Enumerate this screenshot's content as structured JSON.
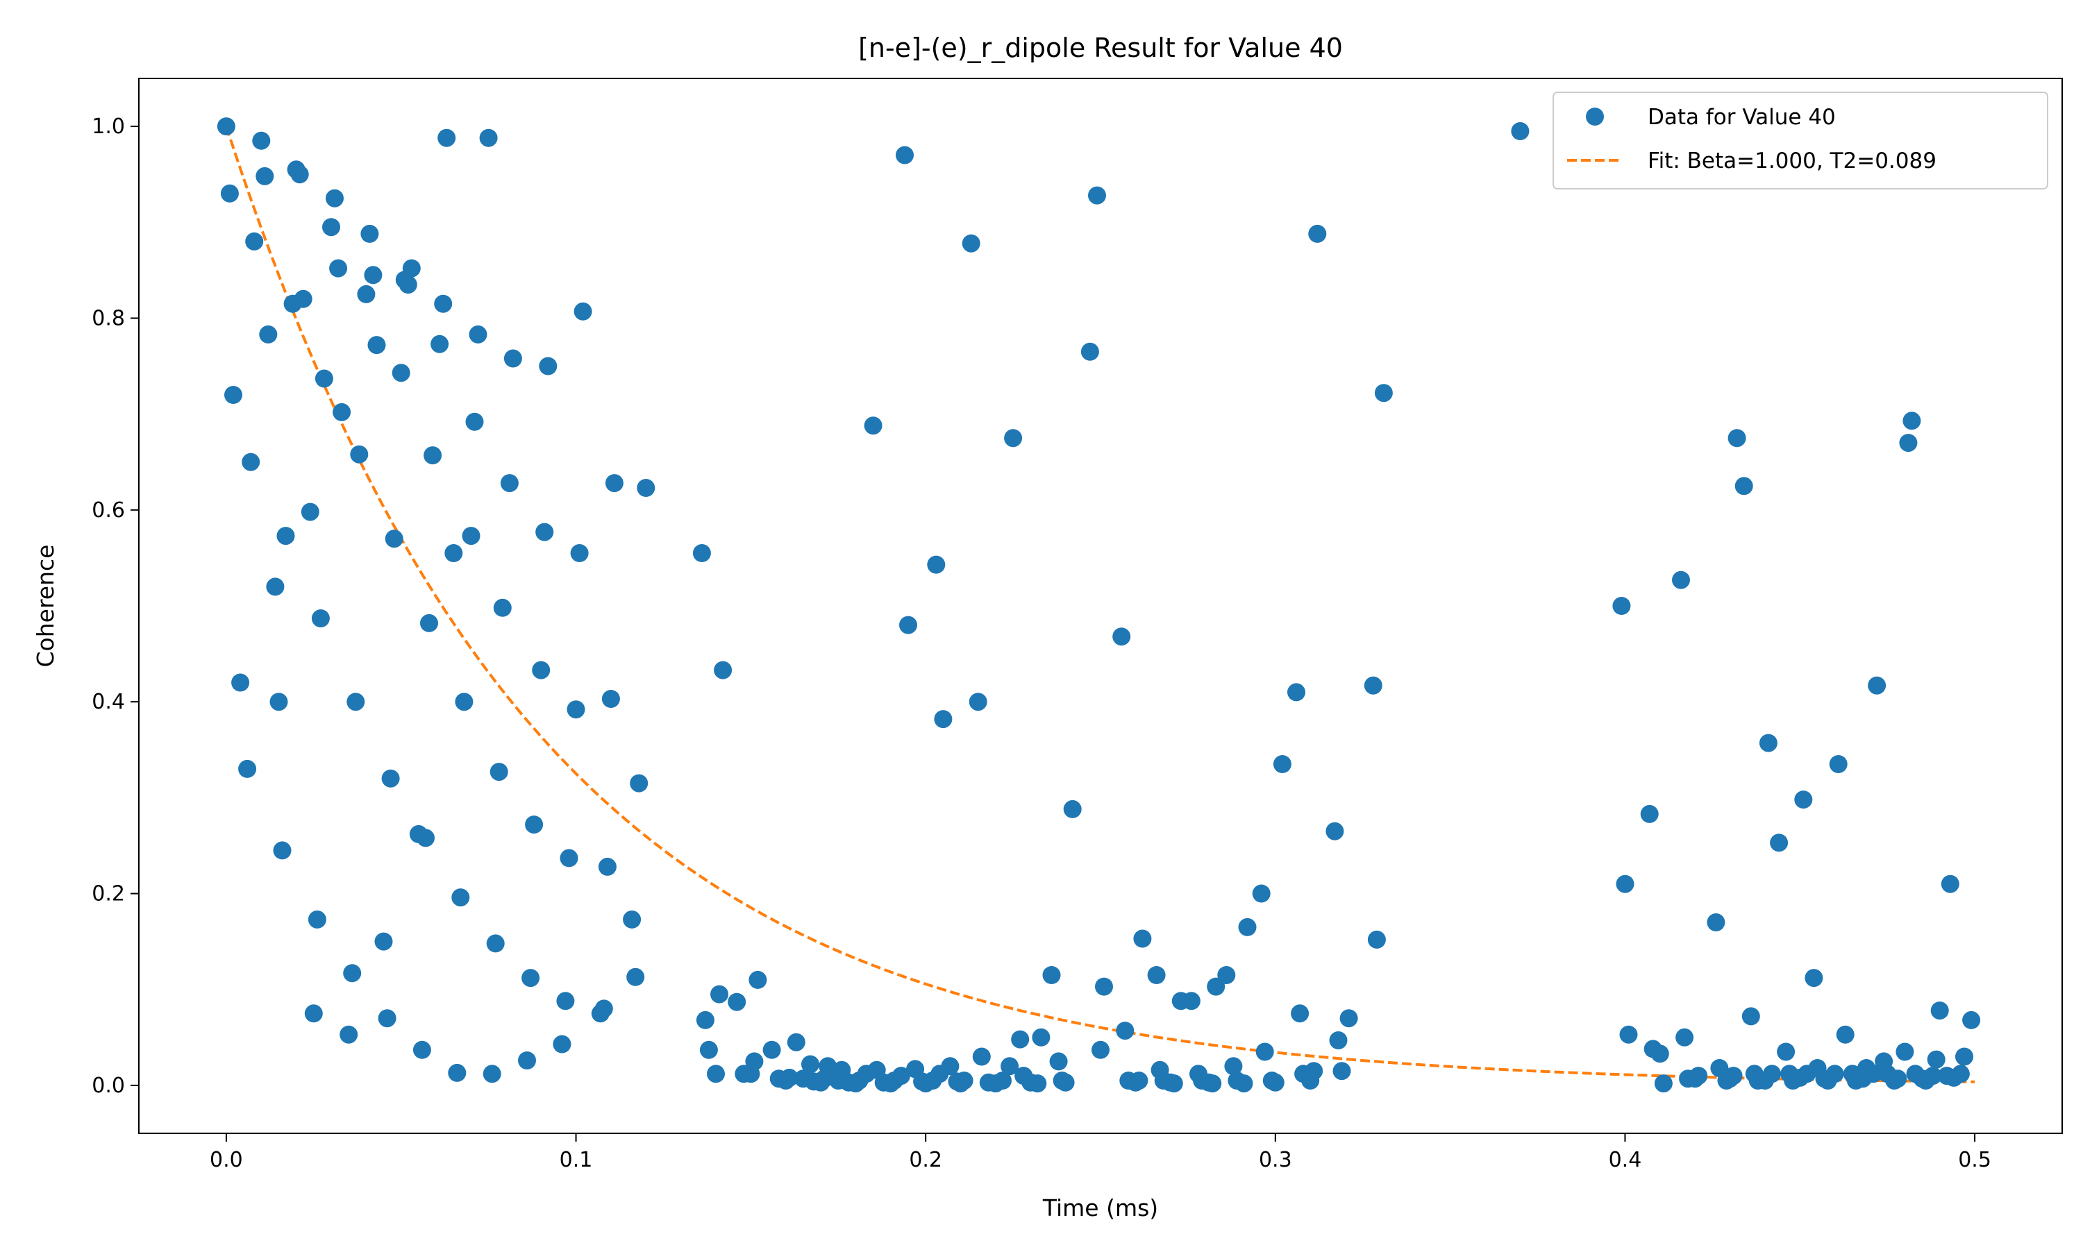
{
  "chart_data": {
    "type": "scatter",
    "title": "[n-e]-(e)_r_dipole Result for Value 40",
    "xlabel": "Time (ms)",
    "ylabel": "Coherence",
    "xlim": [
      -0.025,
      0.525
    ],
    "ylim": [
      -0.05,
      1.05
    ],
    "xticks": [
      {
        "value": 0.0,
        "label": "0.0"
      },
      {
        "value": 0.1,
        "label": "0.1"
      },
      {
        "value": 0.2,
        "label": "0.2"
      },
      {
        "value": 0.3,
        "label": "0.3"
      },
      {
        "value": 0.4,
        "label": "0.4"
      },
      {
        "value": 0.5,
        "label": "0.5"
      }
    ],
    "yticks": [
      {
        "value": 0.0,
        "label": "0.0"
      },
      {
        "value": 0.2,
        "label": "0.2"
      },
      {
        "value": 0.4,
        "label": "0.4"
      },
      {
        "value": 0.6,
        "label": "0.6"
      },
      {
        "value": 0.8,
        "label": "0.8"
      },
      {
        "value": 1.0,
        "label": "1.0"
      }
    ],
    "grid": false,
    "legend_position": "top-right",
    "series": [
      {
        "name": "Data for Value 40",
        "kind": "scatter",
        "color": "#1f77b4",
        "points": [
          [
            0.0,
            1.0
          ],
          [
            0.001,
            0.93
          ],
          [
            0.002,
            0.72
          ],
          [
            0.004,
            0.42
          ],
          [
            0.006,
            0.33
          ],
          [
            0.007,
            0.65
          ],
          [
            0.008,
            0.88
          ],
          [
            0.01,
            0.985
          ],
          [
            0.011,
            0.948
          ],
          [
            0.012,
            0.783
          ],
          [
            0.014,
            0.52
          ],
          [
            0.015,
            0.4
          ],
          [
            0.016,
            0.245
          ],
          [
            0.017,
            0.573
          ],
          [
            0.019,
            0.815
          ],
          [
            0.02,
            0.955
          ],
          [
            0.021,
            0.95
          ],
          [
            0.022,
            0.82
          ],
          [
            0.024,
            0.598
          ],
          [
            0.025,
            0.075
          ],
          [
            0.026,
            0.173
          ],
          [
            0.027,
            0.487
          ],
          [
            0.028,
            0.737
          ],
          [
            0.03,
            0.895
          ],
          [
            0.031,
            0.925
          ],
          [
            0.032,
            0.852
          ],
          [
            0.033,
            0.702
          ],
          [
            0.035,
            0.053
          ],
          [
            0.036,
            0.117
          ],
          [
            0.037,
            0.4
          ],
          [
            0.038,
            0.658
          ],
          [
            0.04,
            0.825
          ],
          [
            0.041,
            0.888
          ],
          [
            0.042,
            0.845
          ],
          [
            0.043,
            0.772
          ],
          [
            0.045,
            0.15
          ],
          [
            0.046,
            0.07
          ],
          [
            0.047,
            0.32
          ],
          [
            0.048,
            0.57
          ],
          [
            0.05,
            0.743
          ],
          [
            0.051,
            0.84
          ],
          [
            0.052,
            0.835
          ],
          [
            0.053,
            0.852
          ],
          [
            0.055,
            0.262
          ],
          [
            0.056,
            0.037
          ],
          [
            0.057,
            0.258
          ],
          [
            0.058,
            0.482
          ],
          [
            0.059,
            0.657
          ],
          [
            0.061,
            0.773
          ],
          [
            0.062,
            0.815
          ],
          [
            0.063,
            0.988
          ],
          [
            0.065,
            0.555
          ],
          [
            0.066,
            0.013
          ],
          [
            0.067,
            0.196
          ],
          [
            0.068,
            0.4
          ],
          [
            0.07,
            0.573
          ],
          [
            0.071,
            0.692
          ],
          [
            0.072,
            0.783
          ],
          [
            0.075,
            0.988
          ],
          [
            0.076,
            0.012
          ],
          [
            0.077,
            0.148
          ],
          [
            0.078,
            0.327
          ],
          [
            0.079,
            0.498
          ],
          [
            0.081,
            0.628
          ],
          [
            0.082,
            0.758
          ],
          [
            0.086,
            0.026
          ],
          [
            0.087,
            0.112
          ],
          [
            0.088,
            0.272
          ],
          [
            0.09,
            0.433
          ],
          [
            0.091,
            0.577
          ],
          [
            0.092,
            0.75
          ],
          [
            0.096,
            0.043
          ],
          [
            0.097,
            0.088
          ],
          [
            0.098,
            0.237
          ],
          [
            0.1,
            0.392
          ],
          [
            0.101,
            0.555
          ],
          [
            0.102,
            0.807
          ],
          [
            0.107,
            0.075
          ],
          [
            0.108,
            0.08
          ],
          [
            0.109,
            0.228
          ],
          [
            0.11,
            0.403
          ],
          [
            0.111,
            0.628
          ],
          [
            0.116,
            0.173
          ],
          [
            0.117,
            0.113
          ],
          [
            0.118,
            0.315
          ],
          [
            0.12,
            0.623
          ],
          [
            0.136,
            0.555
          ],
          [
            0.137,
            0.068
          ],
          [
            0.138,
            0.037
          ],
          [
            0.14,
            0.012
          ],
          [
            0.141,
            0.095
          ],
          [
            0.142,
            0.433
          ],
          [
            0.146,
            0.087
          ],
          [
            0.148,
            0.012
          ],
          [
            0.15,
            0.012
          ],
          [
            0.151,
            0.025
          ],
          [
            0.152,
            0.11
          ],
          [
            0.156,
            0.037
          ],
          [
            0.158,
            0.007
          ],
          [
            0.16,
            0.005
          ],
          [
            0.161,
            0.008
          ],
          [
            0.163,
            0.045
          ],
          [
            0.165,
            0.007
          ],
          [
            0.167,
            0.022
          ],
          [
            0.168,
            0.004
          ],
          [
            0.17,
            0.003
          ],
          [
            0.171,
            0.007
          ],
          [
            0.172,
            0.02
          ],
          [
            0.175,
            0.005
          ],
          [
            0.176,
            0.016
          ],
          [
            0.178,
            0.003
          ],
          [
            0.18,
            0.002
          ],
          [
            0.181,
            0.005
          ],
          [
            0.183,
            0.012
          ],
          [
            0.185,
            0.688
          ],
          [
            0.186,
            0.016
          ],
          [
            0.188,
            0.003
          ],
          [
            0.19,
            0.002
          ],
          [
            0.191,
            0.005
          ],
          [
            0.193,
            0.01
          ],
          [
            0.194,
            0.97
          ],
          [
            0.195,
            0.48
          ],
          [
            0.197,
            0.017
          ],
          [
            0.199,
            0.004
          ],
          [
            0.2,
            0.002
          ],
          [
            0.202,
            0.005
          ],
          [
            0.203,
            0.543
          ],
          [
            0.204,
            0.012
          ],
          [
            0.205,
            0.382
          ],
          [
            0.207,
            0.02
          ],
          [
            0.209,
            0.004
          ],
          [
            0.21,
            0.002
          ],
          [
            0.211,
            0.005
          ],
          [
            0.213,
            0.878
          ],
          [
            0.215,
            0.4
          ],
          [
            0.216,
            0.03
          ],
          [
            0.218,
            0.003
          ],
          [
            0.22,
            0.002
          ],
          [
            0.222,
            0.005
          ],
          [
            0.224,
            0.02
          ],
          [
            0.225,
            0.675
          ],
          [
            0.227,
            0.048
          ],
          [
            0.228,
            0.01
          ],
          [
            0.23,
            0.003
          ],
          [
            0.232,
            0.002
          ],
          [
            0.233,
            0.05
          ],
          [
            0.236,
            0.115
          ],
          [
            0.238,
            0.025
          ],
          [
            0.239,
            0.005
          ],
          [
            0.24,
            0.003
          ],
          [
            0.242,
            0.288
          ],
          [
            0.247,
            0.765
          ],
          [
            0.249,
            0.928
          ],
          [
            0.25,
            0.037
          ],
          [
            0.251,
            0.103
          ],
          [
            0.256,
            0.468
          ],
          [
            0.257,
            0.057
          ],
          [
            0.258,
            0.005
          ],
          [
            0.26,
            0.003
          ],
          [
            0.261,
            0.005
          ],
          [
            0.262,
            0.153
          ],
          [
            0.266,
            0.115
          ],
          [
            0.267,
            0.016
          ],
          [
            0.268,
            0.005
          ],
          [
            0.27,
            0.003
          ],
          [
            0.271,
            0.002
          ],
          [
            0.273,
            0.088
          ],
          [
            0.276,
            0.088
          ],
          [
            0.278,
            0.012
          ],
          [
            0.279,
            0.005
          ],
          [
            0.281,
            0.003
          ],
          [
            0.282,
            0.002
          ],
          [
            0.283,
            0.103
          ],
          [
            0.286,
            0.115
          ],
          [
            0.288,
            0.02
          ],
          [
            0.289,
            0.005
          ],
          [
            0.291,
            0.002
          ],
          [
            0.292,
            0.165
          ],
          [
            0.296,
            0.2
          ],
          [
            0.297,
            0.035
          ],
          [
            0.299,
            0.005
          ],
          [
            0.3,
            0.003
          ],
          [
            0.302,
            0.335
          ],
          [
            0.306,
            0.41
          ],
          [
            0.307,
            0.075
          ],
          [
            0.308,
            0.012
          ],
          [
            0.31,
            0.005
          ],
          [
            0.311,
            0.015
          ],
          [
            0.312,
            0.888
          ],
          [
            0.317,
            0.265
          ],
          [
            0.318,
            0.047
          ],
          [
            0.319,
            0.015
          ],
          [
            0.321,
            0.07
          ],
          [
            0.328,
            0.417
          ],
          [
            0.329,
            0.152
          ],
          [
            0.331,
            0.722
          ],
          [
            0.37,
            0.995
          ],
          [
            0.399,
            0.5
          ],
          [
            0.4,
            0.21
          ],
          [
            0.401,
            0.053
          ],
          [
            0.407,
            0.283
          ],
          [
            0.408,
            0.038
          ],
          [
            0.41,
            0.033
          ],
          [
            0.411,
            0.002
          ],
          [
            0.416,
            0.527
          ],
          [
            0.417,
            0.05
          ],
          [
            0.418,
            0.007
          ],
          [
            0.42,
            0.007
          ],
          [
            0.421,
            0.01
          ],
          [
            0.426,
            0.17
          ],
          [
            0.427,
            0.018
          ],
          [
            0.429,
            0.005
          ],
          [
            0.43,
            0.007
          ],
          [
            0.431,
            0.01
          ],
          [
            0.432,
            0.675
          ],
          [
            0.434,
            0.625
          ],
          [
            0.436,
            0.072
          ],
          [
            0.437,
            0.012
          ],
          [
            0.438,
            0.005
          ],
          [
            0.44,
            0.005
          ],
          [
            0.441,
            0.357
          ],
          [
            0.442,
            0.012
          ],
          [
            0.444,
            0.253
          ],
          [
            0.446,
            0.035
          ],
          [
            0.447,
            0.012
          ],
          [
            0.448,
            0.005
          ],
          [
            0.45,
            0.008
          ],
          [
            0.451,
            0.298
          ],
          [
            0.452,
            0.012
          ],
          [
            0.454,
            0.112
          ],
          [
            0.455,
            0.018
          ],
          [
            0.457,
            0.007
          ],
          [
            0.458,
            0.005
          ],
          [
            0.46,
            0.012
          ],
          [
            0.461,
            0.335
          ],
          [
            0.463,
            0.053
          ],
          [
            0.465,
            0.012
          ],
          [
            0.466,
            0.005
          ],
          [
            0.468,
            0.007
          ],
          [
            0.469,
            0.018
          ],
          [
            0.471,
            0.012
          ],
          [
            0.472,
            0.417
          ],
          [
            0.474,
            0.025
          ],
          [
            0.475,
            0.012
          ],
          [
            0.477,
            0.005
          ],
          [
            0.478,
            0.007
          ],
          [
            0.48,
            0.035
          ],
          [
            0.481,
            0.67
          ],
          [
            0.482,
            0.693
          ],
          [
            0.483,
            0.012
          ],
          [
            0.485,
            0.007
          ],
          [
            0.486,
            0.005
          ],
          [
            0.488,
            0.01
          ],
          [
            0.489,
            0.027
          ],
          [
            0.49,
            0.078
          ],
          [
            0.492,
            0.01
          ],
          [
            0.493,
            0.21
          ],
          [
            0.494,
            0.008
          ],
          [
            0.496,
            0.012
          ],
          [
            0.497,
            0.03
          ],
          [
            0.499,
            0.068
          ]
        ]
      },
      {
        "name": "Fit: Beta=1.000, T2=0.089",
        "kind": "line",
        "style": "dashed",
        "color": "#ff7f0e",
        "function": "exp(-(t/T2)^Beta)",
        "params": {
          "Beta": 1.0,
          "T2": 0.089
        },
        "t_range": [
          0.0,
          0.5
        ]
      }
    ]
  }
}
